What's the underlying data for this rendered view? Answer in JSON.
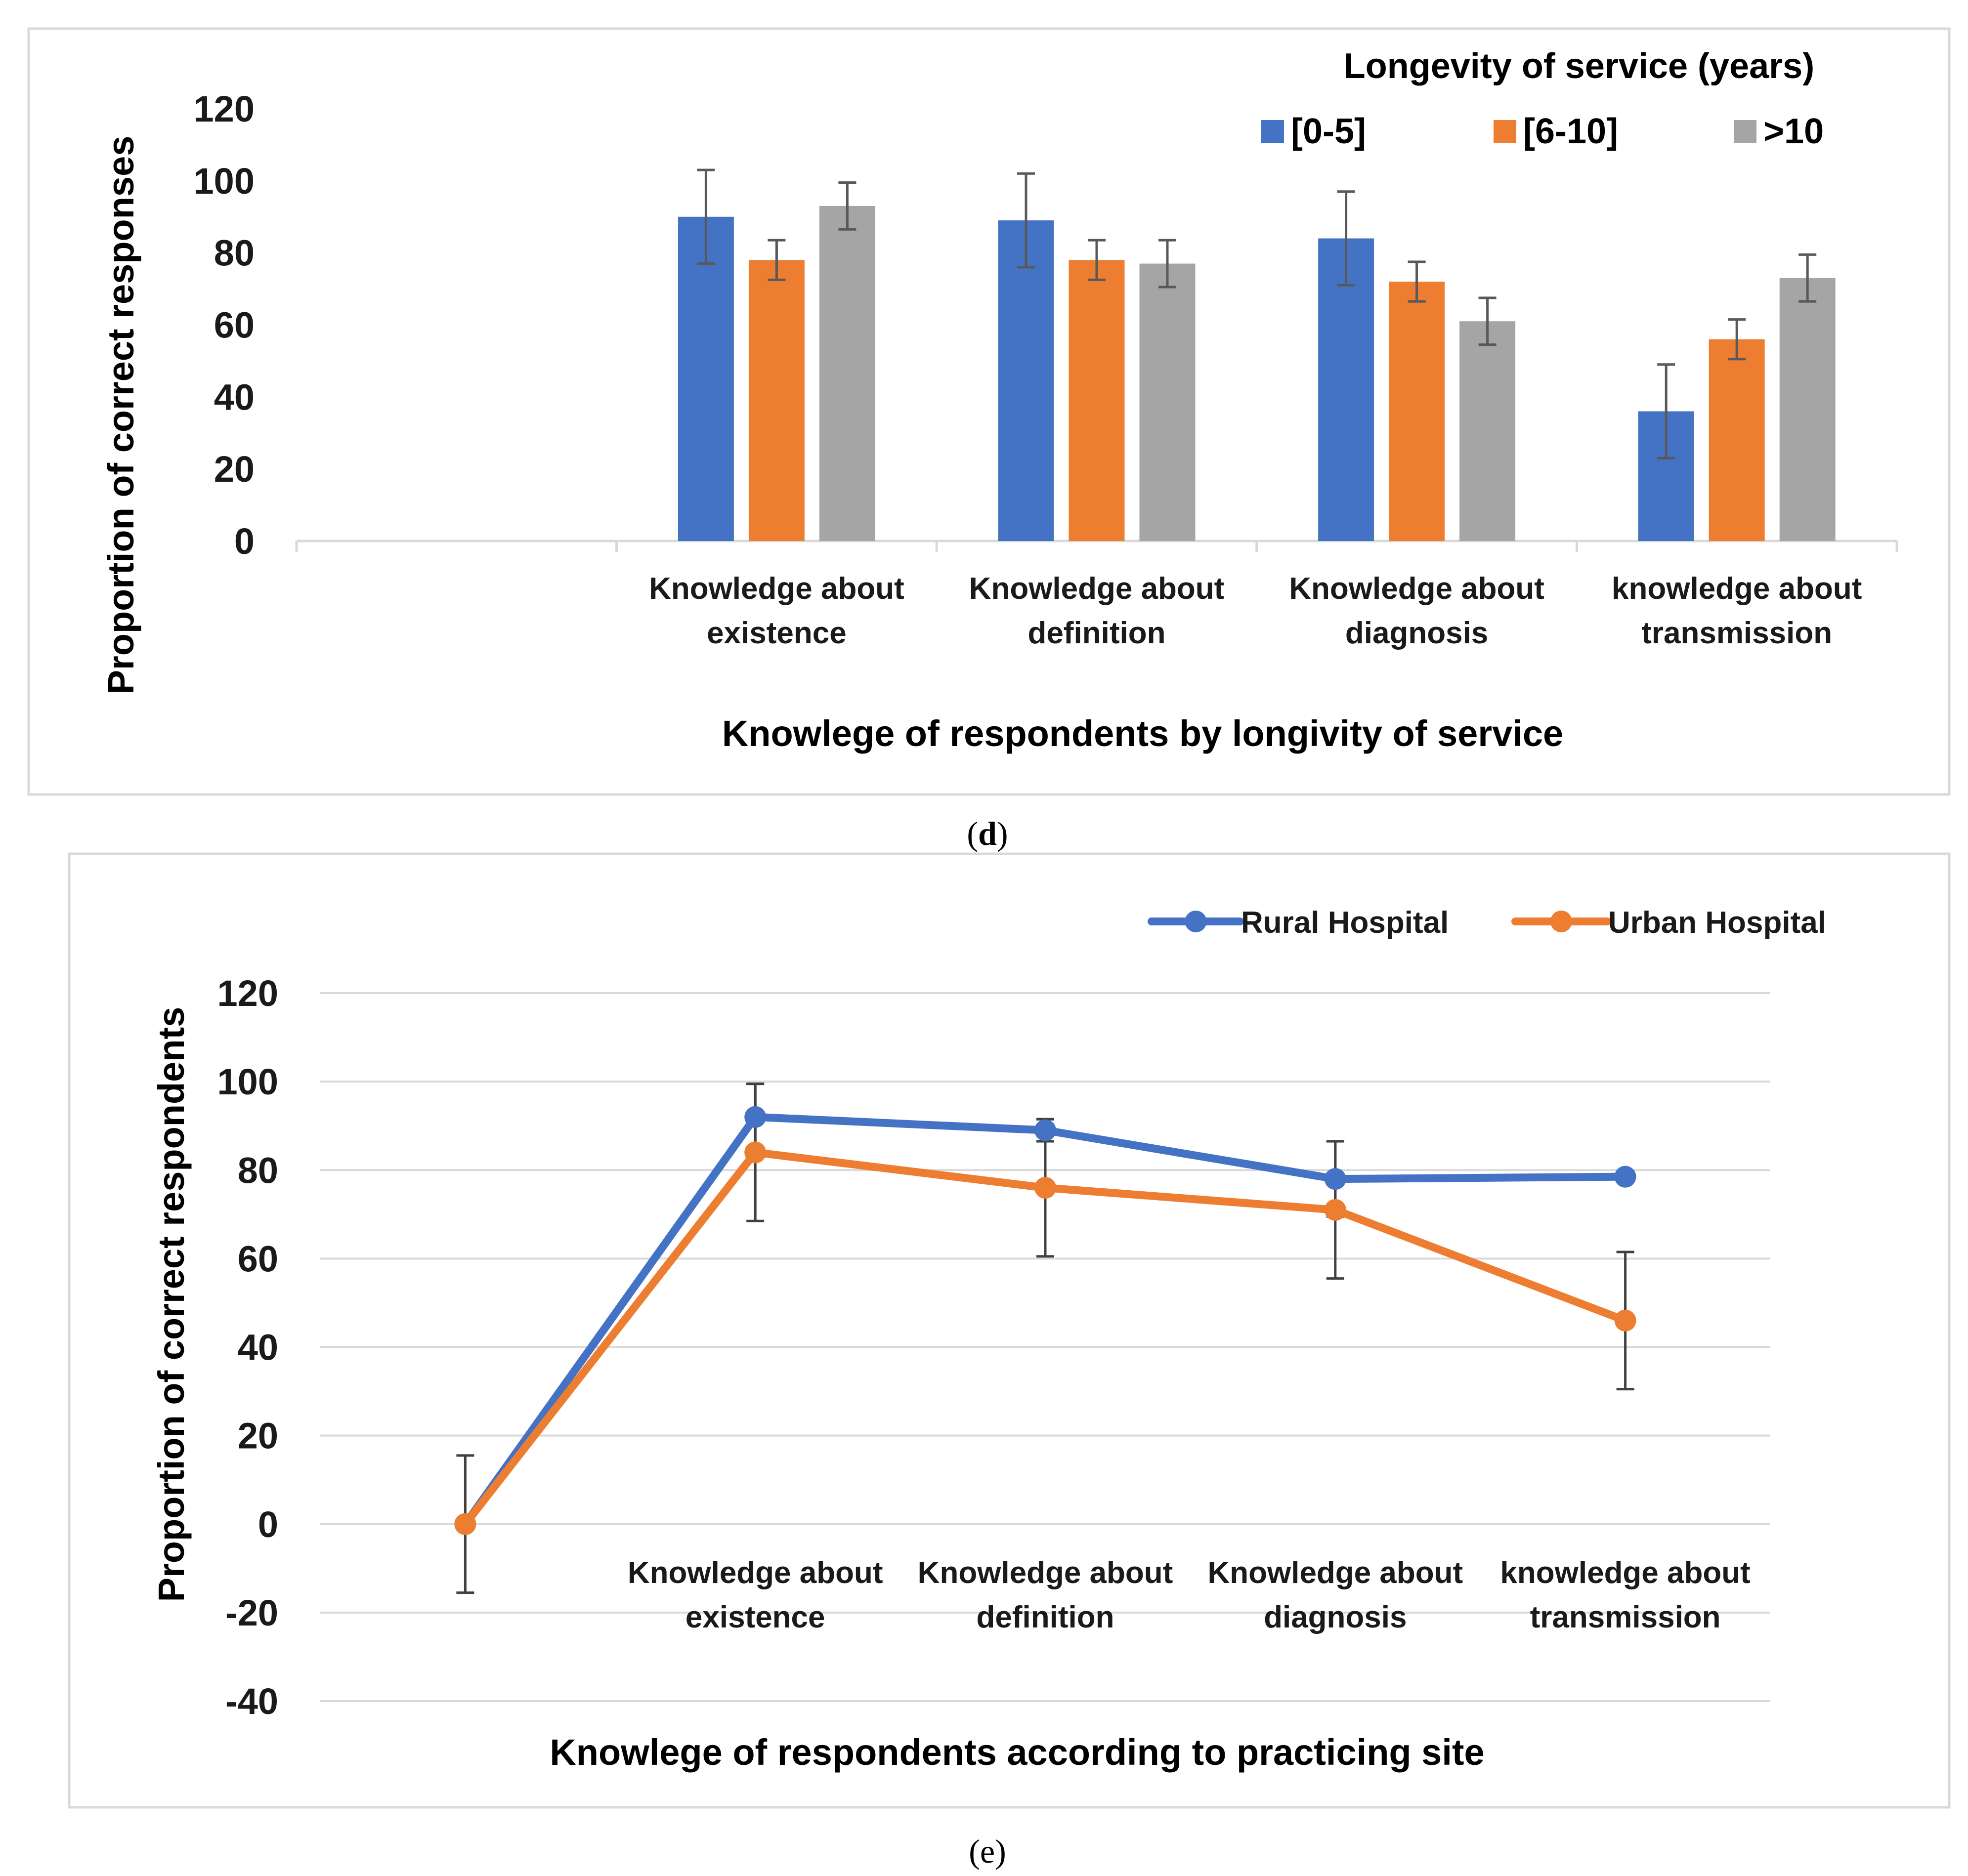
{
  "chart_data": [
    {
      "type": "bar",
      "caption": "d",
      "xlabel": "Knowlege of respondents by longivity of service",
      "ylabel": "Proportion of correct responses",
      "yticks": [
        "0",
        "20",
        "40",
        "60",
        "80",
        "100",
        "120"
      ],
      "ylim": [
        0,
        120
      ],
      "legend_title": "Longevity of service (years)",
      "categories": [
        [
          "",
          ""
        ],
        [
          "Knowledge about",
          "existence"
        ],
        [
          "Knowledge about",
          "definition"
        ],
        [
          "Knowledge about",
          "diagnosis"
        ],
        [
          "knowledge about",
          "transmission"
        ]
      ],
      "series": [
        {
          "name": "[0-5]",
          "color": "#4472c4",
          "values": [
            null,
            90,
            89,
            84,
            36
          ],
          "error": [
            null,
            13,
            13,
            13,
            13
          ]
        },
        {
          "name": "[6-10]",
          "color": "#ed7d31",
          "values": [
            null,
            78,
            78,
            72,
            56
          ],
          "error": [
            null,
            5.5,
            5.5,
            5.5,
            5.5
          ]
        },
        {
          "name": ">10",
          "color": "#a5a5a5",
          "values": [
            null,
            93,
            77,
            61,
            73
          ],
          "error": [
            null,
            6.5,
            6.5,
            6.5,
            6.5
          ]
        }
      ]
    },
    {
      "type": "line",
      "caption": "(e)",
      "xlabel": "Knowlege of respondents according to practicing site",
      "ylabel": "Proportion of correct respondents",
      "yticks": [
        "-40",
        "-20",
        "0",
        "20",
        "40",
        "60",
        "80",
        "100",
        "120"
      ],
      "ylim": [
        -40,
        120
      ],
      "categories": [
        [
          "",
          ""
        ],
        [
          "Knowledge about",
          "existence"
        ],
        [
          "Knowledge about",
          "definition"
        ],
        [
          "Knowledge about",
          "diagnosis"
        ],
        [
          "knowledge about",
          "transmission"
        ]
      ],
      "series": [
        {
          "name": "Rural  Hospital",
          "color": "#4472c4",
          "values": [
            0,
            92,
            89,
            78,
            78.5
          ],
          "error": [
            null,
            7.5,
            2.5,
            8.5,
            null
          ]
        },
        {
          "name": "Urban Hospital",
          "color": "#ed7d31",
          "values": [
            0,
            84,
            76,
            71,
            46
          ],
          "error": [
            15.5,
            15.5,
            15.5,
            15.5,
            15.5
          ]
        }
      ]
    }
  ]
}
